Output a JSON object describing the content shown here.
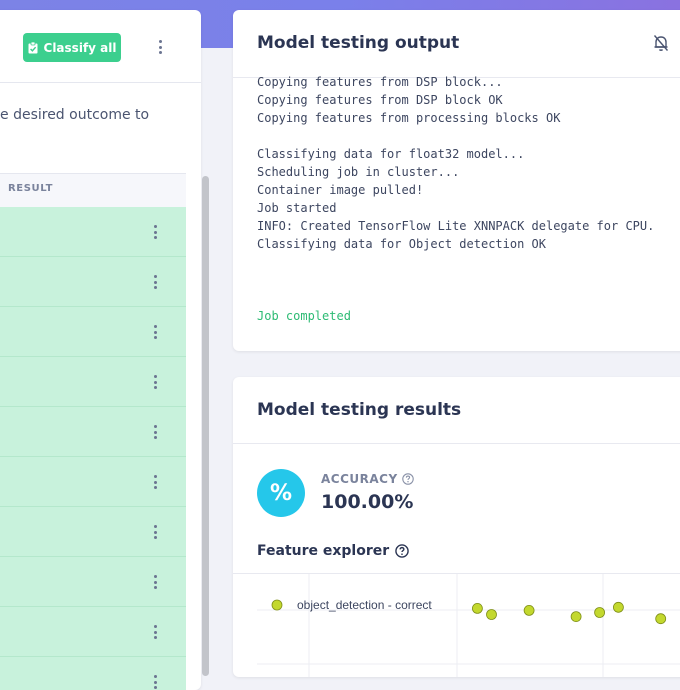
{
  "colors": {
    "accent_green": "#3ccf8e",
    "row_green": "#c8f2dc",
    "accuracy_blue": "#25c7ea",
    "point_fill": "#c3d82e",
    "log_done": "#2dbb74"
  },
  "left_panel": {
    "classify_all_label": "Classify all",
    "classify_icon": "clipboard-check-icon",
    "description": "e desired outcome to",
    "result_header": "RESULT",
    "rows": [
      "",
      "",
      "",
      "",
      "",
      "",
      "",
      "",
      "",
      ""
    ]
  },
  "output": {
    "title": "Model testing output",
    "bell_icon": "bell-off-icon",
    "log": [
      "Copying features from DSP block...",
      "Copying features from DSP block OK",
      "Copying features from processing blocks OK",
      "",
      "Classifying data for float32 model...",
      "Scheduling job in cluster...",
      "Container image pulled!",
      "Job started",
      "INFO: Created TensorFlow Lite XNNPACK delegate for CPU.",
      "Classifying data for Object detection OK",
      "",
      "",
      ""
    ],
    "done": "Job completed"
  },
  "results": {
    "title": "Model testing results",
    "percent_symbol": "%",
    "accuracy_label": "ACCURACY",
    "accuracy_value": "100.00%",
    "feature_explorer_title": "Feature explorer",
    "legend_label": "object_detection - correct",
    "points": [
      {
        "x": 0.52,
        "y": 0.88
      },
      {
        "x": 0.55,
        "y": 0.82
      },
      {
        "x": 0.63,
        "y": 0.86
      },
      {
        "x": 0.73,
        "y": 0.8
      },
      {
        "x": 0.78,
        "y": 0.84
      },
      {
        "x": 0.82,
        "y": 0.89
      },
      {
        "x": 0.91,
        "y": 0.78
      }
    ]
  }
}
